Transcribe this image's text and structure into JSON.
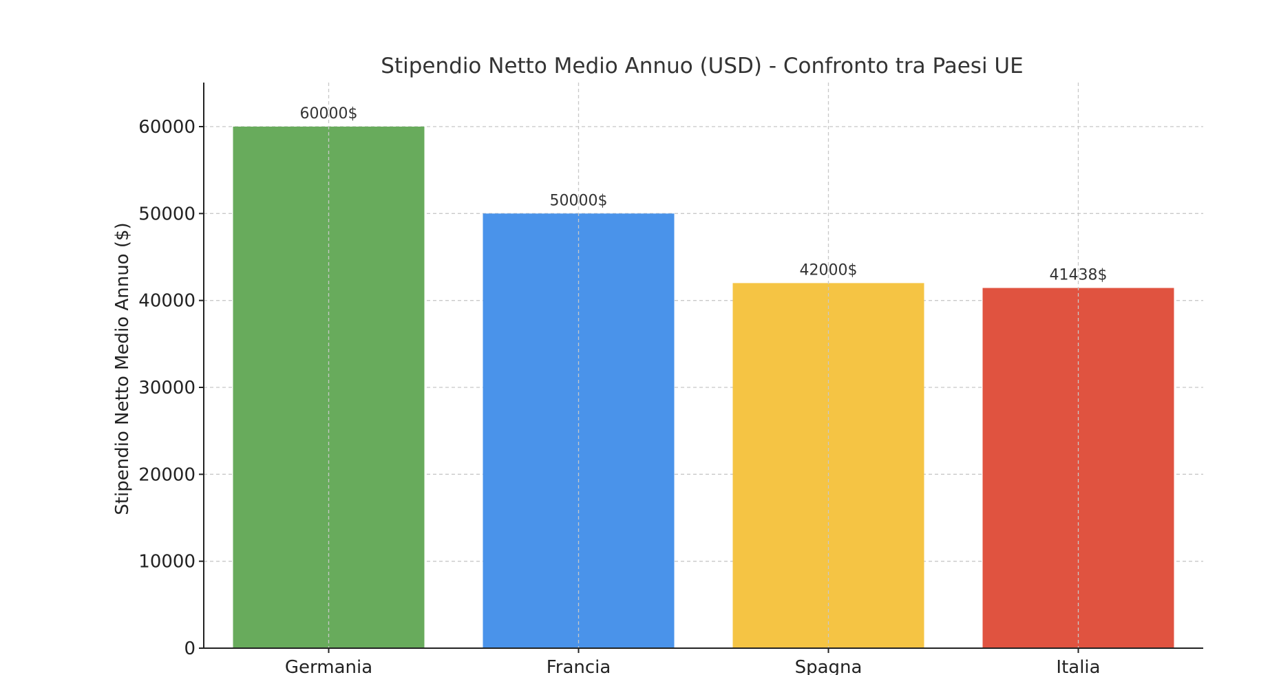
{
  "chart_data": {
    "type": "bar",
    "title": "Stipendio Netto Medio Annuo (USD) - Confronto tra Paesi UE",
    "xlabel": "",
    "ylabel": "Stipendio Netto Medio Annuo ($)",
    "categories": [
      "Germania",
      "Francia",
      "Spagna",
      "Italia"
    ],
    "values": [
      60000,
      50000,
      42000,
      41438
    ],
    "data_labels": [
      "60000$",
      "50000$",
      "42000$",
      "41438$"
    ],
    "colors": [
      "#68ab5c",
      "#4a93ea",
      "#f5c444",
      "#e05340"
    ],
    "yticks": [
      0,
      10000,
      20000,
      30000,
      40000,
      50000,
      60000
    ],
    "ytick_labels": [
      "0",
      "10000",
      "20000",
      "30000",
      "40000",
      "50000",
      "60000"
    ],
    "ylim": [
      0,
      65000
    ],
    "grid": true,
    "legend": "none"
  }
}
